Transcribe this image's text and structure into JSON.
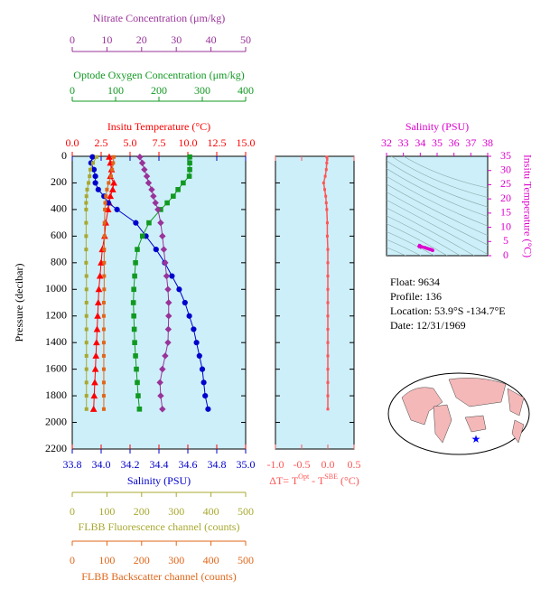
{
  "chart_data": [
    {
      "type": "line",
      "ylabel": "Pressure (decibar)",
      "ylim": [
        0,
        2200
      ],
      "y_inverted": true,
      "yticks": [
        0,
        200,
        400,
        600,
        800,
        1000,
        1200,
        1400,
        1600,
        1800,
        2000,
        2200
      ],
      "pressure": [
        5,
        50,
        100,
        150,
        200,
        250,
        300,
        350,
        400,
        500,
        600,
        700,
        800,
        900,
        1000,
        1100,
        1200,
        1300,
        1400,
        1500,
        1600,
        1700,
        1800,
        1900
      ],
      "series": [
        {
          "label": "Insitu Temperature (°C)",
          "color": "#ff0000",
          "marker": "triangle",
          "xlim": [
            0,
            15
          ],
          "xticks": [
            {
              "value": 0,
              "label": "0.0"
            },
            {
              "value": 2.5,
              "label": "2.5"
            },
            {
              "value": 5,
              "label": "5.0"
            },
            {
              "value": 7.5,
              "label": "7.5"
            },
            {
              "value": 10,
              "label": "10.0"
            },
            {
              "value": 12.5,
              "label": "12.5"
            },
            {
              "value": 15,
              "label": "15.0"
            }
          ],
          "values": [
            3.2,
            3.3,
            3.4,
            3.3,
            3.6,
            3.5,
            3.3,
            3.2,
            3.1,
            2.9,
            2.8,
            2.6,
            2.5,
            2.4,
            2.3,
            2.25,
            2.2,
            2.15,
            2.1,
            2.05,
            2.0,
            1.95,
            1.9,
            1.85
          ]
        },
        {
          "label": "Salinity (PSU)",
          "color": "#0000cc",
          "marker": "circle",
          "xlim": [
            33.8,
            35.0
          ],
          "xticks": [
            {
              "value": 33.8,
              "label": "33.8"
            },
            {
              "value": 34.0,
              "label": "34.0"
            },
            {
              "value": 34.2,
              "label": "34.2"
            },
            {
              "value": 34.4,
              "label": "34.4"
            },
            {
              "value": 34.6,
              "label": "34.6"
            },
            {
              "value": 34.8,
              "label": "34.8"
            },
            {
              "value": 35.0,
              "label": "35.0"
            }
          ],
          "values": [
            33.94,
            33.93,
            33.95,
            33.96,
            33.96,
            33.98,
            34.02,
            34.05,
            34.11,
            34.24,
            34.31,
            34.38,
            34.44,
            34.49,
            34.54,
            34.58,
            34.61,
            34.64,
            34.66,
            34.68,
            34.7,
            34.71,
            34.72,
            34.74
          ]
        },
        {
          "label": "Optode Oxygen Concentration (μm/kg)",
          "color": "#119922",
          "marker": "square",
          "xlim": [
            0,
            400
          ],
          "xticks": [
            0,
            100,
            200,
            300,
            400
          ],
          "values": [
            271,
            271,
            271,
            270,
            256,
            244,
            233,
            219,
            204,
            177,
            162,
            150,
            146,
            144,
            142,
            141,
            142,
            143,
            144,
            146,
            148,
            150,
            152,
            155
          ]
        },
        {
          "label": "Nitrate Concentration (μm/kg)",
          "color": "#993399",
          "marker": "diamond",
          "xlim": [
            0,
            50
          ],
          "xticks": [
            0,
            10,
            20,
            30,
            40,
            50
          ],
          "values": [
            19.5,
            20.2,
            20.8,
            21.5,
            22.0,
            22.9,
            23.4,
            24.0,
            24.7,
            25.5,
            26.0,
            26.4,
            26.8,
            27.2,
            27.6,
            27.8,
            27.8,
            27.7,
            27.6,
            26.8,
            26.0,
            25.3,
            25.5,
            26.0
          ]
        },
        {
          "label": "FLBB Fluorescence channel (counts)",
          "color": "#a8a830",
          "marker": "small",
          "xlim": [
            0,
            500
          ],
          "xticks": [
            0,
            100,
            200,
            300,
            400,
            500
          ],
          "values": [
            70,
            60,
            52,
            50,
            47,
            43,
            41,
            40,
            40,
            40,
            40,
            40,
            40,
            41,
            41,
            41,
            41,
            41,
            41,
            41,
            41,
            41,
            41,
            41
          ]
        },
        {
          "label": "FLBB Backscatter channel (counts)",
          "color": "#e0661a",
          "marker": "small",
          "xlim": [
            0,
            500
          ],
          "xticks": [
            0,
            100,
            200,
            300,
            400,
            500
          ],
          "values": [
            120,
            118,
            115,
            112,
            105,
            100,
            97,
            95,
            94,
            93,
            93,
            92,
            92,
            92,
            92,
            91,
            91,
            91,
            91,
            91,
            91,
            91,
            91,
            91
          ]
        }
      ]
    },
    {
      "type": "line",
      "xlabel": [
        "ΔT= T",
        "Opt",
        " - T",
        "SBE",
        " (°C)"
      ],
      "color": "#ff5555",
      "xlim": [
        -1.0,
        0.5
      ],
      "xticks": [
        {
          "value": -1.0,
          "label": "-1.0"
        },
        {
          "value": -0.5,
          "label": "-0.5"
        },
        {
          "value": 0,
          "label": "0.0"
        },
        {
          "value": 0.5,
          "label": "0.5"
        }
      ],
      "values": [
        -0.02,
        -0.02,
        -0.03,
        -0.05,
        -0.08,
        -0.06,
        -0.04,
        -0.03,
        -0.02,
        -0.01,
        -0.01,
        0,
        0,
        0,
        0,
        0,
        0,
        0,
        0,
        0,
        0,
        0,
        0,
        0
      ]
    },
    {
      "type": "scatter",
      "xlabel": "Salinity (PSU)",
      "ylabel": "Insitu Temperature (°C)",
      "color": "#dd00cc",
      "xlim": [
        32,
        38
      ],
      "xticks": [
        32,
        33,
        34,
        35,
        36,
        37,
        38
      ],
      "ylim": [
        0,
        35
      ],
      "yticks": [
        0,
        5,
        10,
        15,
        20,
        25,
        30,
        35
      ]
    }
  ],
  "info": [
    "Float:  9634",
    "Profile:  136",
    "Location:  53.9°S  -134.7°E",
    "Date:  12/31/1969"
  ]
}
